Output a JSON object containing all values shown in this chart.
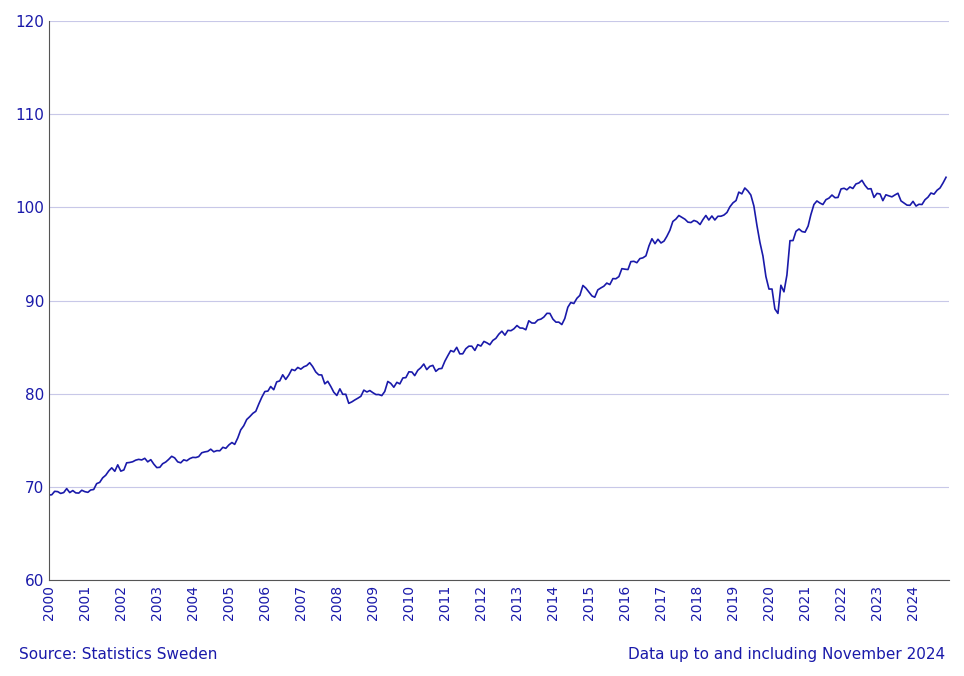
{
  "line_color": "#1a1aaa",
  "bg_color": "#ffffff",
  "grid_color": "#c8c8e8",
  "ylim": [
    60,
    120
  ],
  "yticks": [
    60,
    70,
    80,
    90,
    100,
    110,
    120
  ],
  "tick_color": "#1a1aaa",
  "source_text": "Source: Statistics Sweden",
  "data_text": "Data up to and including November 2024",
  "footer_color": "#1a1aaa",
  "linewidth": 1.2,
  "start_year": 2000,
  "start_month": 1,
  "xtick_years": [
    2000,
    2001,
    2002,
    2003,
    2004,
    2005,
    2006,
    2007,
    2008,
    2009,
    2010,
    2011,
    2012,
    2013,
    2014,
    2015,
    2016,
    2017,
    2018,
    2019,
    2020,
    2021,
    2022,
    2023,
    2024
  ]
}
